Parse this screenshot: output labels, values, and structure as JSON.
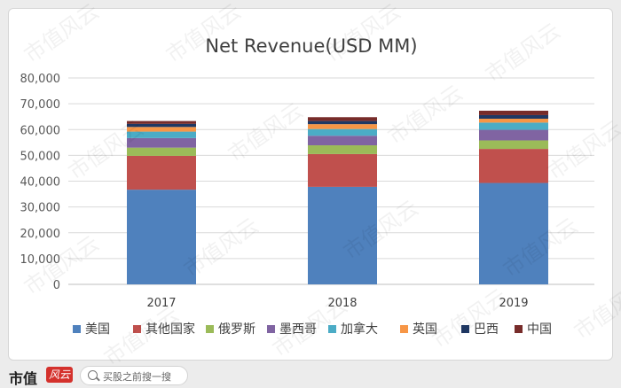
{
  "chart_data": {
    "type": "bar",
    "stacked": true,
    "title": "Net Revenue(USD MM)",
    "categories": [
      "2017",
      "2018",
      "2019"
    ],
    "ylim": [
      0,
      80000
    ],
    "yticks": [
      "0",
      "10,000",
      "20,000",
      "30,000",
      "40,000",
      "50,000",
      "60,000",
      "70,000",
      "80,000"
    ],
    "ytick_values": [
      0,
      10000,
      20000,
      30000,
      40000,
      50000,
      60000,
      70000,
      80000
    ],
    "grid": true,
    "legend_position": "bottom",
    "series": [
      {
        "name": "美国",
        "color": "#4f81bd",
        "values": [
          36700,
          37800,
          39300
        ]
      },
      {
        "name": "其他国家",
        "color": "#c0504d",
        "values": [
          13100,
          12700,
          13200
        ]
      },
      {
        "name": "俄罗斯",
        "color": "#9bbb59",
        "values": [
          3200,
          3400,
          3300
        ]
      },
      {
        "name": "墨西哥",
        "color": "#8064a2",
        "values": [
          3700,
          3700,
          4100
        ]
      },
      {
        "name": "加拿大",
        "color": "#4bacc6",
        "values": [
          2500,
          2600,
          2800
        ]
      },
      {
        "name": "英国",
        "color": "#f79646",
        "values": [
          1800,
          1900,
          1500
        ]
      },
      {
        "name": "巴西",
        "color": "#1f3864",
        "values": [
          1200,
          1200,
          1400
        ]
      },
      {
        "name": "中国",
        "color": "#772c2a",
        "values": [
          1100,
          1500,
          1700
        ]
      }
    ]
  },
  "watermark_text": "市值风云",
  "footer": {
    "brand": "市值",
    "brand_mark": "风云",
    "search_placeholder": "买股之前搜一搜"
  }
}
